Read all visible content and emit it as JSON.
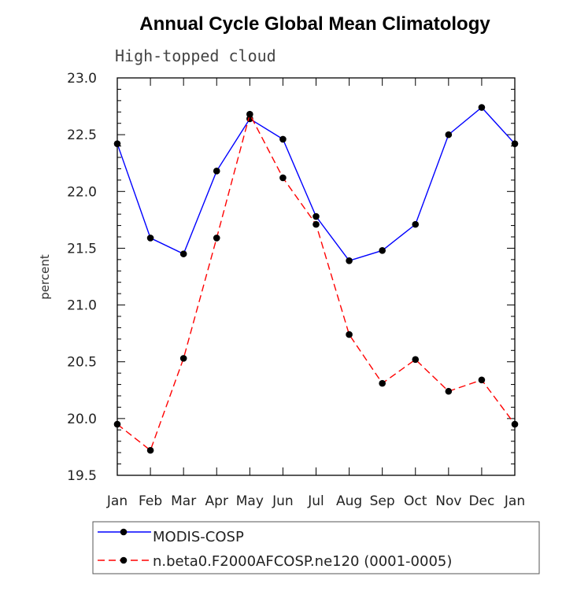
{
  "chart_data": {
    "type": "line",
    "title": "Annual Cycle Global Mean Climatology",
    "subtitle": "High-topped cloud",
    "xlabel": "",
    "ylabel": "percent",
    "categories": [
      "Jan",
      "Feb",
      "Mar",
      "Apr",
      "May",
      "Jun",
      "Jul",
      "Aug",
      "Sep",
      "Oct",
      "Nov",
      "Dec",
      "Jan"
    ],
    "ylim": [
      19.5,
      23.0
    ],
    "yticks": [
      19.5,
      20.0,
      20.5,
      21.0,
      21.5,
      22.0,
      22.5,
      23.0
    ],
    "ytick_labels": [
      "19.5",
      "20.0",
      "20.5",
      "21.0",
      "21.5",
      "22.0",
      "22.5",
      "23.0"
    ],
    "grid": false,
    "legend_position": "bottom",
    "series": [
      {
        "name": "MODIS-COSP",
        "color": "#0000ff",
        "dash": "solid",
        "values": [
          22.42,
          21.59,
          21.45,
          22.18,
          22.64,
          22.46,
          21.78,
          21.39,
          21.48,
          21.71,
          22.5,
          22.74,
          22.42
        ]
      },
      {
        "name": "n.beta0.F2000AFCOSP.ne120 (0001-0005)",
        "color": "#ff0000",
        "dash": "dashed",
        "values": [
          19.95,
          19.72,
          20.53,
          21.59,
          22.68,
          22.12,
          21.71,
          20.74,
          20.31,
          20.52,
          20.24,
          20.34,
          19.95
        ]
      }
    ]
  }
}
